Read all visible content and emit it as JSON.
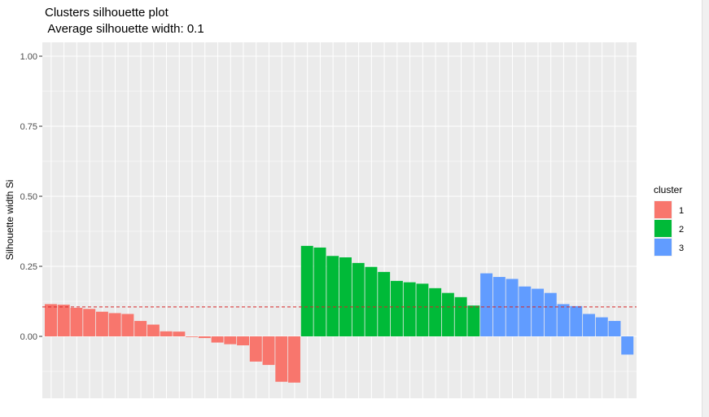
{
  "chart_data": {
    "type": "bar",
    "title": "Clusters silhouette plot",
    "subtitle": " Average silhouette width: 0.1",
    "xlabel": "",
    "ylabel": "Silhouette width Si",
    "ylim": [
      -0.2,
      1.0
    ],
    "yticks": [
      "0.00",
      "0.25",
      "0.50",
      "0.75",
      "1.00"
    ],
    "ytick_values": [
      0,
      0.25,
      0.5,
      0.75,
      1.0
    ],
    "average_line": 0.105,
    "legend": {
      "title": "cluster",
      "position": "right",
      "entries": [
        {
          "label": "1",
          "color": "#F8766D"
        },
        {
          "label": "2",
          "color": "#00BA38"
        },
        {
          "label": "3",
          "color": "#619CFF"
        }
      ]
    },
    "series": [
      {
        "name": "1",
        "color": "#F8766D",
        "values": [
          0.115,
          0.113,
          0.102,
          0.098,
          0.088,
          0.083,
          0.08,
          0.055,
          0.042,
          0.018,
          0.017,
          -0.002,
          -0.006,
          -0.022,
          -0.028,
          -0.032,
          -0.09,
          -0.102,
          -0.162,
          -0.165
        ]
      },
      {
        "name": "2",
        "color": "#00BA38",
        "values": [
          0.323,
          0.317,
          0.287,
          0.282,
          0.262,
          0.248,
          0.23,
          0.198,
          0.193,
          0.188,
          0.172,
          0.155,
          0.14,
          0.11
        ]
      },
      {
        "name": "3",
        "color": "#619CFF",
        "values": [
          0.225,
          0.212,
          0.205,
          0.178,
          0.17,
          0.155,
          0.115,
          0.108,
          0.08,
          0.068,
          0.055,
          -0.065
        ]
      }
    ]
  }
}
